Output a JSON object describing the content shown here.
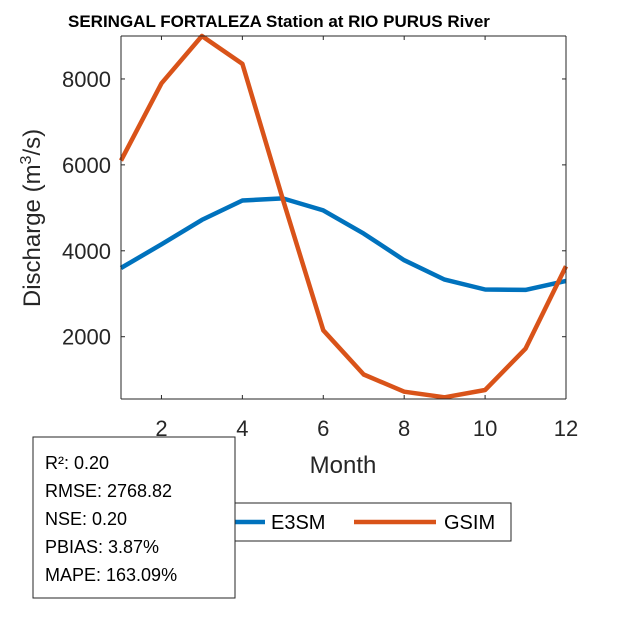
{
  "chart_data": {
    "type": "line",
    "title": "SERINGAL FORTALEZA  Station at  RIO PURUS  River",
    "xlabel": "Month",
    "ylabel": "Discharge (m",
    "ylabel_sup": "3",
    "ylabel_tail": "/s)",
    "x": [
      1,
      2,
      3,
      4,
      5,
      6,
      7,
      8,
      9,
      10,
      11,
      12
    ],
    "xlim": [
      1,
      12
    ],
    "ylim": [
      550,
      9000
    ],
    "xticks": [
      2,
      4,
      6,
      8,
      10,
      12
    ],
    "yticks": [
      2000,
      4000,
      6000,
      8000
    ],
    "grid": false,
    "legend_position": "bottom",
    "series": [
      {
        "name": "E3SM",
        "color": "#0072BD",
        "values": [
          3600,
          4150,
          4720,
          5170,
          5220,
          4940,
          4400,
          3780,
          3330,
          3100,
          3090,
          3300
        ]
      },
      {
        "name": "GSIM",
        "color": "#D95319",
        "values": [
          6100,
          7900,
          9000,
          8350,
          5200,
          2150,
          1120,
          720,
          590,
          760,
          1720,
          3640
        ]
      }
    ]
  },
  "stats": {
    "lines": [
      "R²: 0.20",
      "RMSE: 2768.82",
      "NSE: 0.20",
      "PBIAS: 3.87%",
      "MAPE: 163.09%"
    ]
  }
}
